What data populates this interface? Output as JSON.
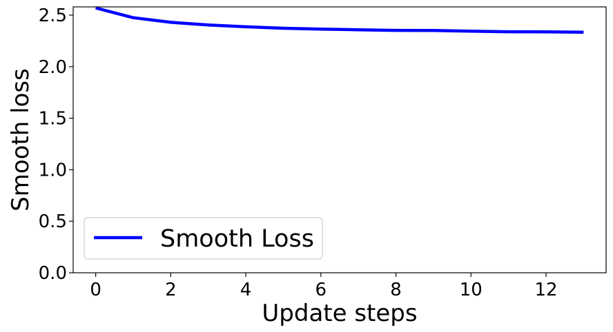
{
  "chart_data": {
    "type": "line",
    "title": "",
    "xlabel": "Update steps",
    "ylabel": "Smooth loss",
    "xlim": [
      -0.6,
      13.6
    ],
    "ylim": [
      0.0,
      2.58
    ],
    "x_ticks": [
      0,
      2,
      4,
      6,
      8,
      10,
      12
    ],
    "x_tick_labels": [
      "0",
      "2",
      "4",
      "6",
      "8",
      "10",
      "12"
    ],
    "y_ticks": [
      0.0,
      0.5,
      1.0,
      1.5,
      2.0,
      2.5
    ],
    "y_tick_labels": [
      "0.0",
      "0.5",
      "1.0",
      "1.5",
      "2.0",
      "2.5"
    ],
    "grid": false,
    "legend_position": "lower-left",
    "series": [
      {
        "name": "Smooth Loss",
        "color": "#0000ff",
        "x": [
          0,
          1,
          2,
          3,
          4,
          5,
          6,
          7,
          8,
          9,
          10,
          11,
          12,
          13
        ],
        "y": [
          2.57,
          2.475,
          2.43,
          2.405,
          2.387,
          2.373,
          2.365,
          2.358,
          2.352,
          2.351,
          2.345,
          2.339,
          2.338,
          2.335
        ]
      }
    ]
  }
}
